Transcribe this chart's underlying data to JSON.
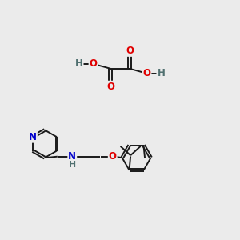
{
  "bg_color": "#ebebeb",
  "bond_color": "#1a1a1a",
  "atom_colors": {
    "O": "#e00000",
    "N": "#0000cc",
    "H": "#507070",
    "C": "#1a1a1a"
  },
  "figsize": [
    3.0,
    3.0
  ],
  "dpi": 100
}
